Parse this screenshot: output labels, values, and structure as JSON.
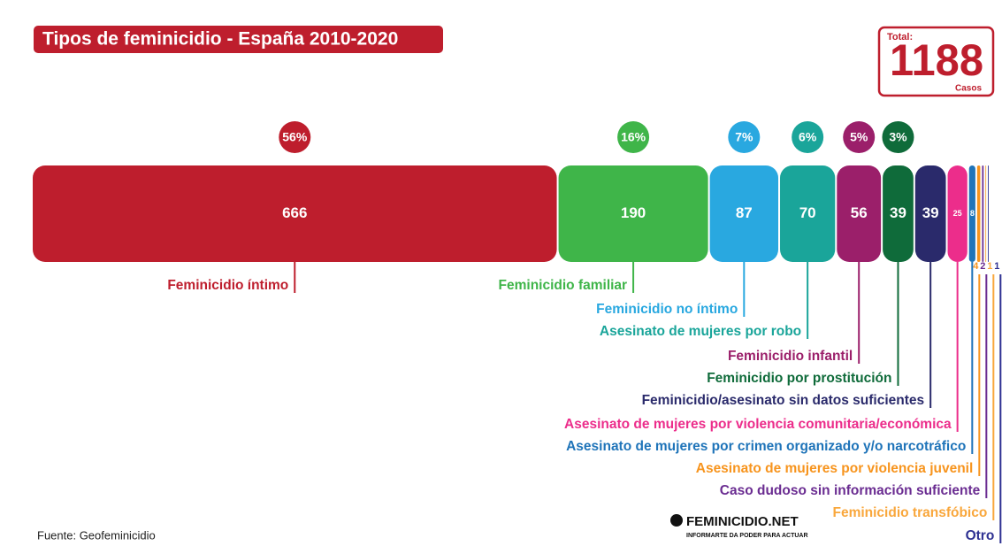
{
  "chart_data": {
    "type": "stacked-bar",
    "title": "Tipos de feminicidio - España 2010-2020",
    "total_label": "Total:",
    "total": 1188,
    "total_unit": "Casos",
    "categories": [
      "Feminicidio íntimo",
      "Feminicidio familiar",
      "Feminicidio no íntimo",
      "Asesinato de mujeres por robo",
      "Feminicidio infantil",
      "Feminicidio por prostitución",
      "Feminicidio/asesinato sin datos suficientes",
      "Asesinato de mujeres por violencia comunitaria/económica",
      "Asesinato de mujeres por crimen organizado y/o narcotráfico",
      "Asesinato de mujeres por violencia juvenil",
      "Caso dudoso sin información suficiente",
      "Feminicidio transfóbico",
      "Otro"
    ],
    "values": [
      666,
      190,
      87,
      70,
      56,
      39,
      39,
      25,
      8,
      4,
      2,
      1,
      1
    ],
    "percentage_labels": [
      "56%",
      "16%",
      "7%",
      "6%",
      "5%",
      "3%"
    ],
    "colors": [
      "#be1e2d",
      "#3fb549",
      "#29a8e0",
      "#1aa59a",
      "#9b1f6a",
      "#0f6b3a",
      "#2a2a6b",
      "#ec2d8b",
      "#1f74b9",
      "#f7941d",
      "#6a2c91",
      "#f9a73c",
      "#2e3192"
    ],
    "source": "Fuente: Geofeminicidio",
    "logo": "FEMINICIDIO.NET",
    "logo_tagline": "INFORMARTE DA PODER PARA ACTUAR"
  }
}
